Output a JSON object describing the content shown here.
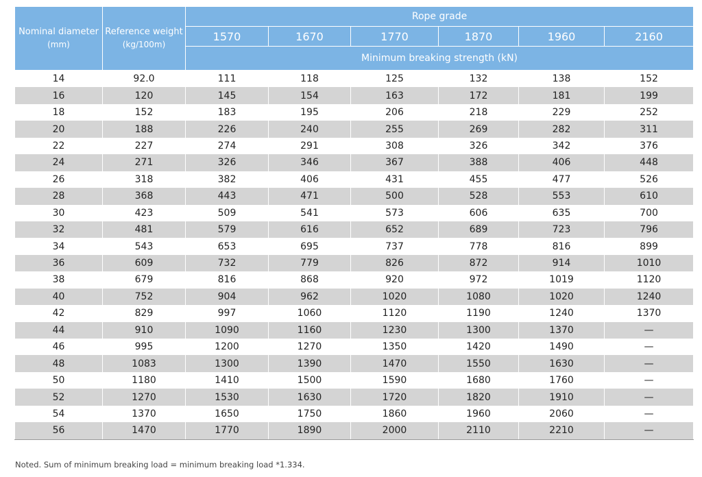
{
  "header": {
    "nominal_diameter": "Nominal diameter",
    "nominal_diameter_unit": "(mm)",
    "reference_weight": "Reference weight",
    "reference_weight_unit": "(kg/100m)",
    "rope_grade": "Rope grade",
    "grades": [
      "1570",
      "1670",
      "1770",
      "1870",
      "1960",
      "2160"
    ],
    "minimum_breaking_strength": "Minimum breaking strength (kN)"
  },
  "rows": [
    [
      "14",
      "92.0",
      "111",
      "118",
      "125",
      "132",
      "138",
      "152"
    ],
    [
      "16",
      "120",
      "145",
      "154",
      "163",
      "172",
      "181",
      "199"
    ],
    [
      "18",
      "152",
      "183",
      "195",
      "206",
      "218",
      "229",
      "252"
    ],
    [
      "20",
      "188",
      "226",
      "240",
      "255",
      "269",
      "282",
      "311"
    ],
    [
      "22",
      "227",
      "274",
      "291",
      "308",
      "326",
      "342",
      "376"
    ],
    [
      "24",
      "271",
      "326",
      "346",
      "367",
      "388",
      "406",
      "448"
    ],
    [
      "26",
      "318",
      "382",
      "406",
      "431",
      "455",
      "477",
      "526"
    ],
    [
      "28",
      "368",
      "443",
      "471",
      "500",
      "528",
      "553",
      "610"
    ],
    [
      "30",
      "423",
      "509",
      "541",
      "573",
      "606",
      "635",
      "700"
    ],
    [
      "32",
      "481",
      "579",
      "616",
      "652",
      "689",
      "723",
      "796"
    ],
    [
      "34",
      "543",
      "653",
      "695",
      "737",
      "778",
      "816",
      "899"
    ],
    [
      "36",
      "609",
      "732",
      "779",
      "826",
      "872",
      "914",
      "1010"
    ],
    [
      "38",
      "679",
      "816",
      "868",
      "920",
      "972",
      "1019",
      "1120"
    ],
    [
      "40",
      "752",
      "904",
      "962",
      "1020",
      "1080",
      "1020",
      "1240"
    ],
    [
      "42",
      "829",
      "997",
      "1060",
      "1120",
      "1190",
      "1240",
      "1370"
    ],
    [
      "44",
      "910",
      "1090",
      "1160",
      "1230",
      "1300",
      "1370",
      "—"
    ],
    [
      "46",
      "995",
      "1200",
      "1270",
      "1350",
      "1420",
      "1490",
      "—"
    ],
    [
      "48",
      "1083",
      "1300",
      "1390",
      "1470",
      "1550",
      "1630",
      "—"
    ],
    [
      "50",
      "1180",
      "1410",
      "1500",
      "1590",
      "1680",
      "1760",
      "—"
    ],
    [
      "52",
      "1270",
      "1530",
      "1630",
      "1720",
      "1820",
      "1910",
      "—"
    ],
    [
      "54",
      "1370",
      "1650",
      "1750",
      "1860",
      "1960",
      "2060",
      "—"
    ],
    [
      "56",
      "1470",
      "1770",
      "1890",
      "2000",
      "2110",
      "2210",
      "—"
    ]
  ],
  "note": "Noted. Sum of minimum breaking load = minimum breaking load *1.334.",
  "colors": {
    "header_bg": "#7cb4e4",
    "stripe_bg": "#d4d4d4"
  }
}
